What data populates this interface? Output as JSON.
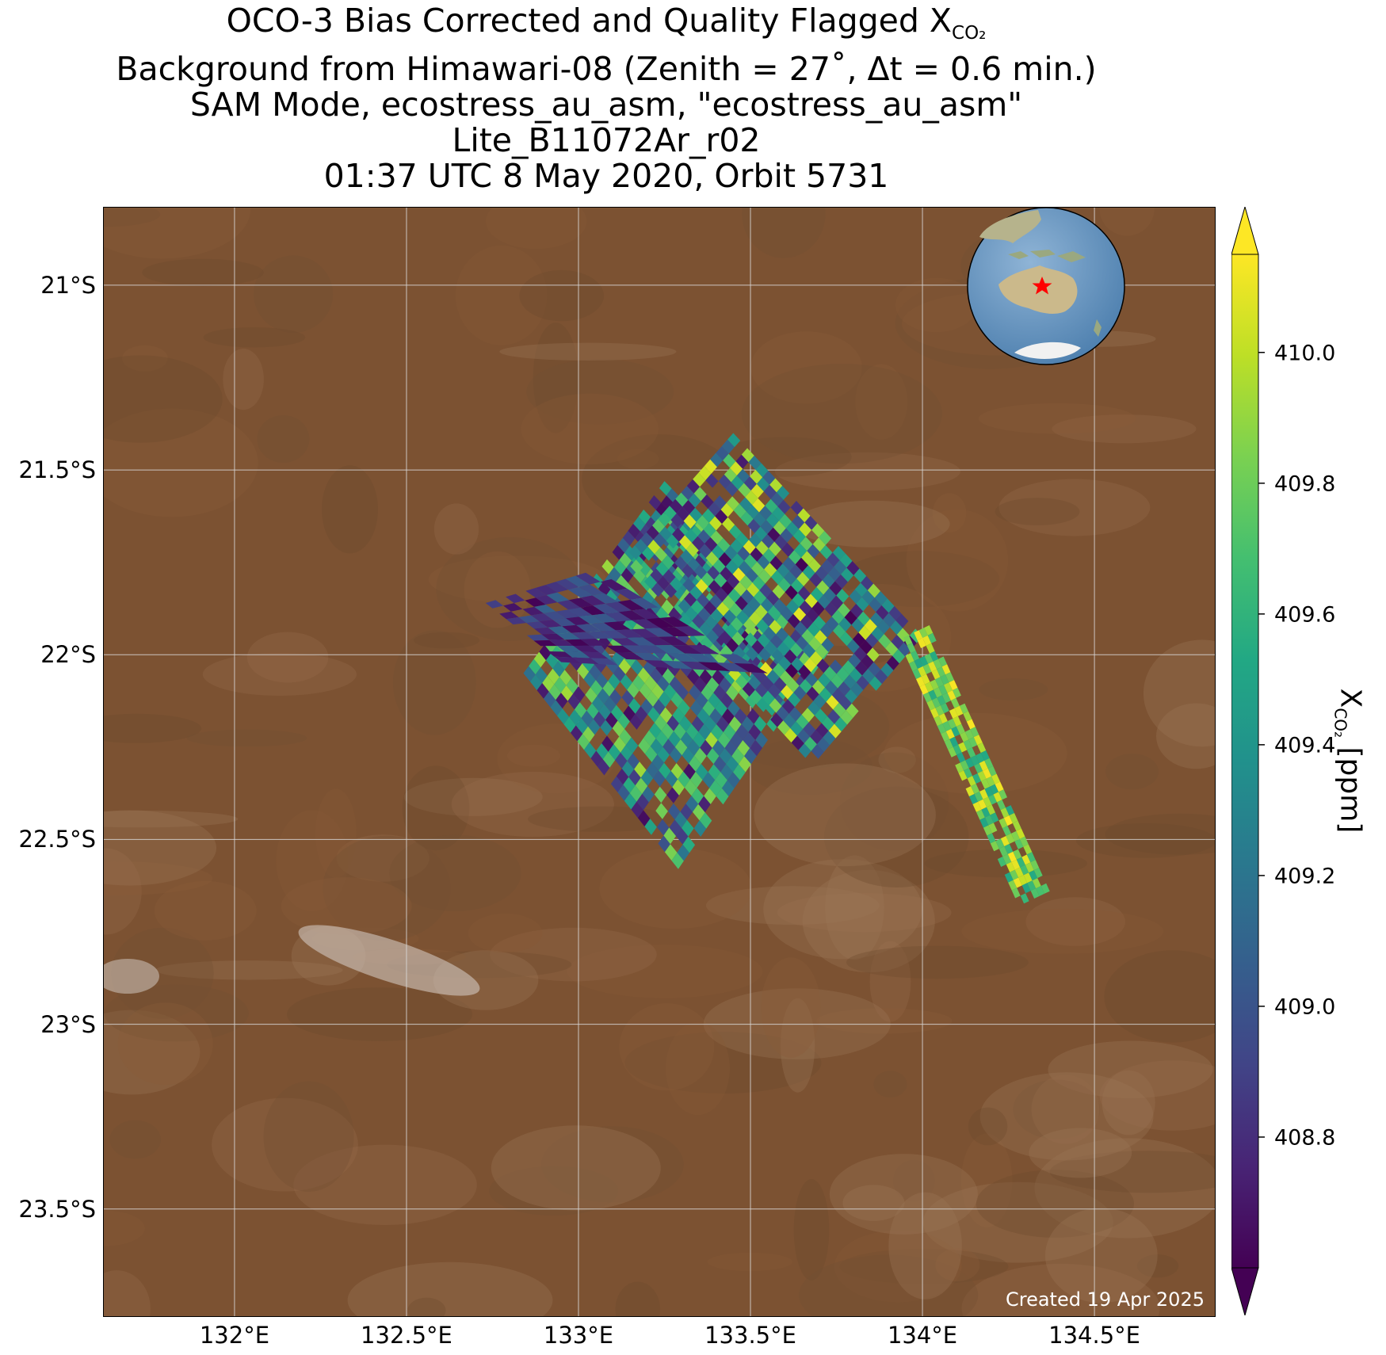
{
  "title": {
    "line1_prefix": "OCO-3 Bias Corrected and Quality Flagged X",
    "line1_sub": "CO₂",
    "line2": "Background from Himawari-08 (Zenith = 27˚, Δt =  0.6 min.)",
    "line3": "SAM Mode, ecostress_au_asm, \"ecostress_au_asm\"",
    "line4": "Lite_B11072Ar_r02",
    "line5": "01:37 UTC 8 May 2020, Orbit 5731"
  },
  "map": {
    "lon_range": [
      131.62,
      134.85
    ],
    "lat_range": [
      -23.79,
      -20.79
    ],
    "lat_ticks": [
      {
        "value": -21.0,
        "label": "21°S"
      },
      {
        "value": -21.5,
        "label": "21.5°S"
      },
      {
        "value": -22.0,
        "label": "22°S"
      },
      {
        "value": -22.5,
        "label": "22.5°S"
      },
      {
        "value": -23.0,
        "label": "23°S"
      },
      {
        "value": -23.5,
        "label": "23.5°S"
      }
    ],
    "lon_ticks": [
      {
        "value": 132.0,
        "label": "132°E"
      },
      {
        "value": 132.5,
        "label": "132.5°E"
      },
      {
        "value": 133.0,
        "label": "133°E"
      },
      {
        "value": 133.5,
        "label": "133.5°E"
      },
      {
        "value": 134.0,
        "label": "134°E"
      },
      {
        "value": 134.5,
        "label": "134.5°E"
      }
    ],
    "gridlines": true,
    "background_color": "#7c5232",
    "inset_globe": {
      "position": "top-right",
      "marker": "star",
      "marker_color": "#ff0000",
      "marker_location": "central Australia"
    }
  },
  "swaths": [
    {
      "name": "a",
      "corners": [
        [
          133.25,
          -21.53
        ],
        [
          133.73,
          -21.99
        ],
        [
          133.29,
          -22.58
        ],
        [
          132.84,
          -22.05
        ]
      ],
      "range": [
        408.65,
        409.95
      ]
    },
    {
      "name": "b",
      "corners": [
        [
          133.45,
          -21.4
        ],
        [
          134.0,
          -21.95
        ],
        [
          133.68,
          -22.3
        ],
        [
          133.13,
          -21.74
        ]
      ],
      "range": [
        408.6,
        410.1
      ]
    },
    {
      "name": "c",
      "corners": [
        [
          132.73,
          -21.86
        ],
        [
          133.05,
          -21.77
        ],
        [
          133.55,
          -22.05
        ],
        [
          132.95,
          -22.02
        ]
      ],
      "range": [
        408.6,
        409.1
      ]
    },
    {
      "name": "d",
      "corners": [
        [
          133.93,
          -21.96
        ],
        [
          134.02,
          -21.92
        ],
        [
          134.37,
          -22.64
        ],
        [
          134.28,
          -22.68
        ]
      ],
      "range": [
        409.5,
        410.15
      ]
    }
  ],
  "colorbar": {
    "label_prefix": "X",
    "label_sub": "CO₂",
    "label_suffix": " [ppm]",
    "range": [
      408.6,
      410.15
    ],
    "ticks": [
      "408.8",
      "409.0",
      "409.2",
      "409.4",
      "409.6",
      "409.8",
      "410.0"
    ],
    "extend": "both",
    "colormap": "viridis"
  },
  "credit": "Created 19 Apr 2025"
}
